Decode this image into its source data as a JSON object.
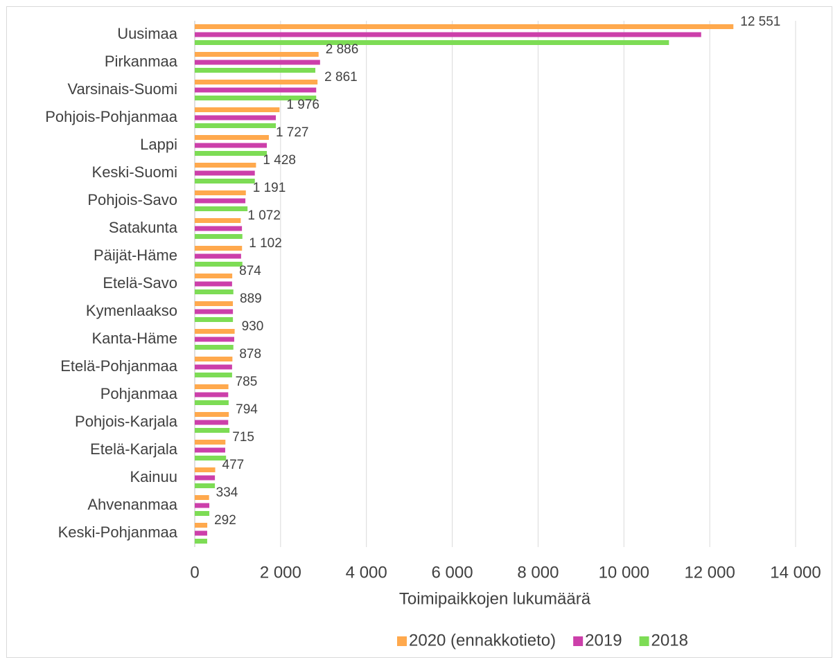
{
  "chart_data": {
    "type": "barh",
    "xlabel": "Toimipaikkojen lukumäärä",
    "categories": [
      "Uusimaa",
      "Pirkanmaa",
      "Varsinais-Suomi",
      "Pohjois-Pohjanmaa",
      "Lappi",
      "Keski-Suomi",
      "Pohjois-Savo",
      "Satakunta",
      "Päijät-Häme",
      "Etelä-Savo",
      "Kymenlaakso",
      "Kanta-Häme",
      "Etelä-Pohjanmaa",
      "Pohjanmaa",
      "Pohjois-Karjala",
      "Etelä-Karjala",
      "Kainuu",
      "Ahvenanmaa",
      "Keski-Pohjanmaa"
    ],
    "series": [
      {
        "name": "2020 (ennakkotieto)",
        "color": "#ffa94d",
        "values": [
          12551,
          2886,
          2861,
          1976,
          1727,
          1428,
          1191,
          1072,
          1102,
          874,
          889,
          930,
          878,
          785,
          794,
          715,
          477,
          334,
          292
        ],
        "value_labels": [
          "12 551",
          "2 886",
          "2 861",
          "1 976",
          "1 727",
          "1 428",
          "1 191",
          "1 072",
          "1 102",
          "874",
          "889",
          "930",
          "878",
          "785",
          "794",
          "715",
          "477",
          "334",
          "292"
        ]
      },
      {
        "name": "2019",
        "color": "#cc3faa",
        "values": [
          11800,
          2920,
          2830,
          1890,
          1680,
          1400,
          1180,
          1100,
          1080,
          870,
          890,
          920,
          870,
          780,
          780,
          710,
          470,
          340,
          290
        ]
      },
      {
        "name": "2018",
        "color": "#7ddc55",
        "values": [
          11050,
          2810,
          2830,
          1890,
          1680,
          1400,
          1230,
          1110,
          1110,
          900,
          890,
          900,
          870,
          790,
          810,
          730,
          470,
          340,
          290
        ]
      }
    ],
    "xlim": [
      0,
      14000
    ],
    "xticks": [
      0,
      {
        "value": 2000,
        "label": "2 000"
      },
      {
        "value": 4000,
        "label": "4 000"
      },
      {
        "value": 6000,
        "label": "6 000"
      },
      {
        "value": 8000,
        "label": "8 000"
      },
      {
        "value": 10000,
        "label": "10 000"
      },
      {
        "value": 12000,
        "label": "12 000"
      },
      {
        "value": 14000,
        "label": "14 000"
      }
    ],
    "grid": true,
    "legend": "bottom"
  }
}
